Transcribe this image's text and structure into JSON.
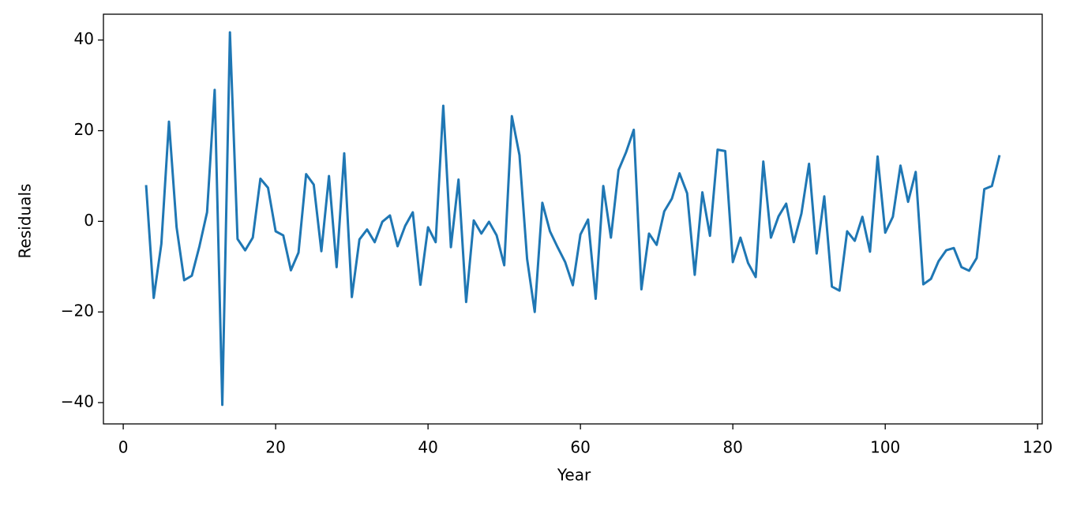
{
  "chart_data": {
    "type": "line",
    "x_label": "Year",
    "y_label": "Residuals",
    "x": [
      3,
      4,
      5,
      6,
      7,
      8,
      9,
      10,
      11,
      12,
      13,
      14,
      15,
      16,
      17,
      18,
      19,
      20,
      21,
      22,
      23,
      24,
      25,
      26,
      27,
      28,
      29,
      30,
      31,
      32,
      33,
      34,
      35,
      36,
      37,
      38,
      39,
      40,
      41,
      42,
      43,
      44,
      45,
      46,
      47,
      48,
      49,
      50,
      51,
      52,
      53,
      54,
      55,
      56,
      57,
      58,
      59,
      60,
      61,
      62,
      63,
      64,
      65,
      66,
      67,
      68,
      69,
      70,
      71,
      72,
      73,
      74,
      75,
      76,
      77,
      78,
      79,
      80,
      81,
      82,
      83,
      84,
      85,
      86,
      87,
      88,
      89,
      90,
      91,
      92,
      93,
      94,
      95,
      96,
      97,
      98,
      99,
      100,
      101,
      102,
      103,
      104,
      105,
      106,
      107,
      108,
      109,
      110,
      111,
      112,
      113,
      114,
      115
    ],
    "series": [
      {
        "color": "#1f77b4",
        "values": [
          8.0,
          -16.9,
          -5,
          22,
          -1.3,
          -13,
          -12,
          -5.5,
          2,
          29,
          -40.5,
          41.7,
          -3.9,
          -6.4,
          -3.6,
          9.4,
          7.4,
          -2.2,
          -3.1,
          -10.8,
          -6.9,
          10.4,
          8.1,
          -6.6,
          10,
          -10.1,
          15,
          -16.7,
          -4,
          -1.8,
          -4.6,
          -0.1,
          1.3,
          -5.5,
          -1,
          2,
          -14,
          -1.3,
          -4.6,
          25.5,
          -5.7,
          9.2,
          -17.8,
          0.2,
          -2.7,
          -0.1,
          -3.1,
          -9.7,
          23.2,
          14.6,
          -8.3,
          -20,
          4.1,
          -2.2,
          -5.7,
          -9,
          -14.1,
          -2.9,
          0.4,
          -17.1,
          7.8,
          -3.6,
          11.3,
          15.3,
          20.2,
          -15,
          -2.7,
          -5.2,
          2.2,
          5,
          10.6,
          6.2,
          -11.8,
          6.4,
          -3.2,
          15.8,
          15.5,
          -9,
          -3.6,
          -9.2,
          -12.3,
          13.2,
          -3.6,
          1.1,
          3.9,
          -4.6,
          1.7,
          12.7,
          -7.1,
          5.5,
          -14.4,
          -15.3,
          -2.2,
          -4.3,
          1,
          -6.7,
          14.3,
          -2.5,
          1,
          12.3,
          4.3,
          10.9,
          -13.9,
          -12.7,
          -8.8,
          -6.4,
          -5.9,
          -10.1,
          -10.9,
          -8.1,
          7.1,
          7.8,
          14.6
        ]
      }
    ],
    "xlim": [
      -2.6,
      120.6
    ],
    "ylim": [
      -44.7,
      45.7
    ],
    "xticks": [
      0,
      20,
      40,
      60,
      80,
      100,
      120
    ],
    "yticks": [
      {
        "value": -40,
        "label": "−40"
      },
      {
        "value": -20,
        "label": "−20"
      },
      0,
      20,
      40
    ],
    "grid": false
  }
}
